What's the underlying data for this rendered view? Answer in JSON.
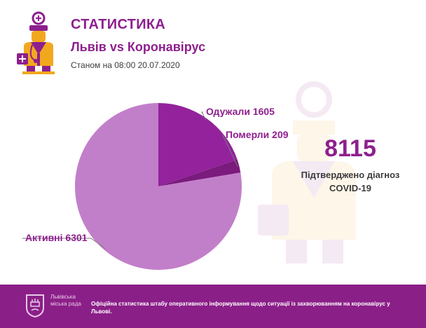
{
  "header": {
    "title": "СТАТИСТИКА",
    "subtitle": "Львів vs Коронавірус",
    "date": "Станом на 08:00 20.07.2020"
  },
  "kpi": {
    "value": "8115",
    "label": "Підтверджено діагноз COVID-19"
  },
  "chart_data": {
    "type": "pie",
    "slices": [
      {
        "label": "Одужали",
        "value": 1605,
        "display": "Одужали 1605",
        "color": "#93229c"
      },
      {
        "label": "Померли",
        "value": 209,
        "display": "Померли 209",
        "color": "#7b1b7d"
      },
      {
        "label": "Активні",
        "value": 6301,
        "display": "Активні 6301",
        "color": "#c27fc9"
      }
    ],
    "total": 8115,
    "start": "12 o'clock",
    "direction": "clockwise"
  },
  "footer": {
    "org": "Львівська міська рада",
    "text": "Офіційна статистика штабу оперативного інформування щодо ситуації із захворюванням на коронавірус у Львові."
  },
  "colors": {
    "brand": "#8e1f8e",
    "footer_bg": "#8b1f88",
    "gold": "#f2a81d"
  },
  "icons": [
    "doctor-logo-icon",
    "city-coat-of-arms-icon",
    "doctor-watermark-icon"
  ]
}
